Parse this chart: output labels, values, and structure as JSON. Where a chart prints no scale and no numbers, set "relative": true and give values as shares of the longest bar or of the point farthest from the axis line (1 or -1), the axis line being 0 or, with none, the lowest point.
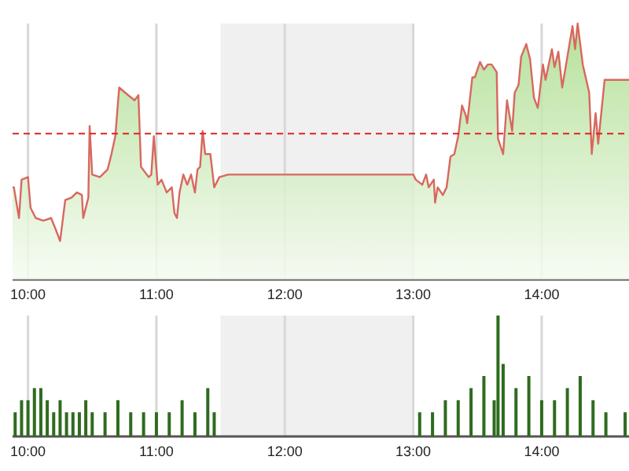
{
  "chart_data": [
    {
      "type": "area",
      "relative": true,
      "xlim": [
        9.88,
        14.68
      ],
      "xticks": [
        {
          "value": 10,
          "label": "10:00"
        },
        {
          "value": 11,
          "label": "11:00"
        },
        {
          "value": 12,
          "label": "12:00"
        },
        {
          "value": 13,
          "label": "13:00"
        },
        {
          "value": 14,
          "label": "14:00"
        }
      ],
      "grid": "x",
      "bands": [
        {
          "axis": "x",
          "from": 11.5,
          "to": 13,
          "color": "#f0f0f0"
        }
      ],
      "ref_lines": [
        {
          "axis": "y",
          "value": 0.57,
          "color": "#e02020",
          "line_style": "dashed"
        }
      ],
      "series": [
        {
          "color": "#d9675f",
          "x": [
            9.88,
            9.89,
            9.93,
            9.95,
            10.0,
            10.02,
            10.06,
            10.12,
            10.18,
            10.22,
            10.25,
            10.29,
            10.34,
            10.38,
            10.42,
            10.43,
            10.47,
            10.48,
            10.5,
            10.56,
            10.62,
            10.65,
            10.68,
            10.71,
            10.78,
            10.83,
            10.86,
            10.88,
            10.94,
            10.96,
            10.98,
            11.01,
            11.04,
            11.08,
            11.12,
            11.14,
            11.16,
            11.18,
            11.21,
            11.24,
            11.27,
            11.3,
            11.32,
            11.34,
            11.36,
            11.38,
            11.42,
            11.45,
            11.49,
            11.56,
            13.0,
            13.02,
            13.07,
            13.1,
            13.12,
            13.16,
            13.17,
            13.19,
            13.23,
            13.26,
            13.29,
            13.32,
            13.35,
            13.38,
            13.41,
            13.42,
            13.46,
            13.48,
            13.52,
            13.55,
            13.58,
            13.61,
            13.65,
            13.66,
            13.7,
            13.73,
            13.77,
            13.79,
            13.82,
            13.84,
            13.88,
            13.91,
            13.94,
            13.97,
            14.01,
            14.03,
            14.08,
            14.1,
            14.13,
            14.16,
            14.2,
            14.24,
            14.26,
            14.28,
            14.32,
            14.37,
            14.39,
            14.42,
            14.44,
            14.49,
            14.68
          ],
          "values": [
            0.36,
            0.36,
            0.24,
            0.39,
            0.4,
            0.28,
            0.24,
            0.23,
            0.24,
            0.19,
            0.15,
            0.31,
            0.32,
            0.34,
            0.33,
            0.24,
            0.32,
            0.6,
            0.41,
            0.4,
            0.43,
            0.49,
            0.56,
            0.75,
            0.72,
            0.7,
            0.72,
            0.44,
            0.4,
            0.41,
            0.56,
            0.37,
            0.39,
            0.34,
            0.36,
            0.26,
            0.24,
            0.34,
            0.41,
            0.37,
            0.41,
            0.34,
            0.43,
            0.44,
            0.58,
            0.49,
            0.49,
            0.36,
            0.4,
            0.41,
            0.41,
            0.39,
            0.37,
            0.41,
            0.36,
            0.39,
            0.3,
            0.36,
            0.33,
            0.36,
            0.48,
            0.49,
            0.56,
            0.68,
            0.64,
            0.61,
            0.79,
            0.79,
            0.85,
            0.82,
            0.84,
            0.84,
            0.81,
            0.55,
            0.49,
            0.7,
            0.58,
            0.73,
            0.76,
            0.87,
            0.92,
            0.86,
            0.71,
            0.67,
            0.84,
            0.78,
            0.9,
            0.83,
            0.89,
            0.75,
            0.87,
            0.99,
            0.9,
            1,
            0.84,
            0.73,
            0.49,
            0.65,
            0.53,
            0.78,
            0.78
          ]
        }
      ]
    },
    {
      "type": "bar",
      "relative": true,
      "xlim": [
        9.88,
        14.68
      ],
      "xticks": [
        {
          "value": 10,
          "label": "10:00"
        },
        {
          "value": 11,
          "label": "11:00"
        },
        {
          "value": 12,
          "label": "12:00"
        },
        {
          "value": 13,
          "label": "13:00"
        },
        {
          "value": 14,
          "label": "14:00"
        }
      ],
      "grid": "x",
      "bands": [
        {
          "axis": "x",
          "from": 11.5,
          "to": 13,
          "color": "#f0f0f0"
        }
      ],
      "series": [
        {
          "color": "#2e6b1e",
          "x": [
            9.9,
            9.95,
            10.0,
            10.05,
            10.1,
            10.15,
            10.2,
            10.25,
            10.3,
            10.35,
            10.4,
            10.45,
            10.5,
            10.6,
            10.7,
            10.8,
            10.9,
            11.0,
            11.1,
            11.2,
            11.3,
            11.4,
            11.45,
            13.05,
            13.15,
            13.25,
            13.35,
            13.45,
            13.55,
            13.63,
            13.66,
            13.7,
            13.8,
            13.9,
            14.0,
            14.1,
            14.2,
            14.3,
            14.4,
            14.5,
            14.65
          ],
          "values": [
            0.2,
            0.3,
            0.3,
            0.4,
            0.4,
            0.3,
            0.2,
            0.3,
            0.2,
            0.2,
            0.2,
            0.3,
            0.2,
            0.2,
            0.3,
            0.2,
            0.2,
            0.2,
            0.2,
            0.3,
            0.2,
            0.4,
            0.2,
            0.2,
            0.2,
            0.3,
            0.3,
            0.4,
            0.5,
            0.3,
            1.0,
            0.6,
            0.4,
            0.5,
            0.3,
            0.3,
            0.4,
            0.5,
            0.3,
            0.2,
            0.2
          ]
        }
      ]
    }
  ]
}
